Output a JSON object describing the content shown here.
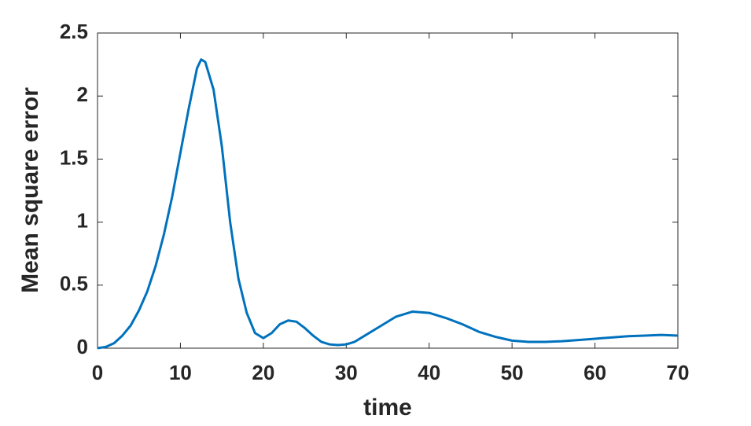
{
  "chart_data": {
    "type": "line",
    "xlabel": "time",
    "ylabel": "Mean square error",
    "x": [
      0,
      1,
      2,
      3,
      4,
      5,
      6,
      7,
      8,
      9,
      10,
      11,
      12,
      12.5,
      13,
      14,
      15,
      16,
      17,
      18,
      19,
      20,
      21,
      22,
      23,
      24,
      25,
      26,
      27,
      28,
      29,
      30,
      31,
      32,
      34,
      36,
      38,
      40,
      42,
      44,
      46,
      48,
      50,
      52,
      54,
      56,
      58,
      60,
      62,
      64,
      66,
      68,
      70
    ],
    "series": [
      {
        "color": "#0072bd",
        "values": [
          0,
          0.01,
          0.04,
          0.1,
          0.18,
          0.3,
          0.45,
          0.65,
          0.9,
          1.2,
          1.55,
          1.9,
          2.22,
          2.29,
          2.27,
          2.05,
          1.6,
          1.0,
          0.55,
          0.28,
          0.12,
          0.08,
          0.12,
          0.19,
          0.22,
          0.21,
          0.16,
          0.1,
          0.05,
          0.03,
          0.025,
          0.03,
          0.05,
          0.09,
          0.17,
          0.25,
          0.29,
          0.28,
          0.24,
          0.19,
          0.13,
          0.09,
          0.06,
          0.05,
          0.05,
          0.055,
          0.065,
          0.075,
          0.085,
          0.095,
          0.1,
          0.105,
          0.1
        ]
      }
    ],
    "xlim": [
      0,
      70
    ],
    "xticks": [
      0,
      10,
      20,
      30,
      40,
      50,
      60,
      70
    ],
    "ylim": [
      0,
      2.5
    ],
    "yticks": [
      0,
      0.5,
      1,
      1.5,
      2,
      2.5
    ]
  }
}
